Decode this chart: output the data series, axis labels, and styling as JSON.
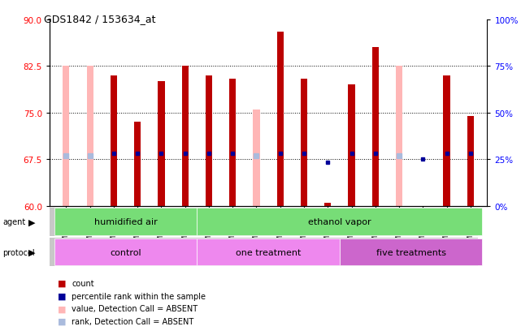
{
  "title": "GDS1842 / 153634_at",
  "samples": [
    "GSM101531",
    "GSM101532",
    "GSM101533",
    "GSM101534",
    "GSM101535",
    "GSM101536",
    "GSM101537",
    "GSM101538",
    "GSM101539",
    "GSM101540",
    "GSM101541",
    "GSM101542",
    "GSM101543",
    "GSM101544",
    "GSM101545",
    "GSM101546",
    "GSM101547",
    "GSM101548"
  ],
  "count_values": [
    null,
    null,
    81.0,
    73.5,
    80.0,
    82.5,
    81.0,
    80.5,
    null,
    88.0,
    80.5,
    60.5,
    79.5,
    85.5,
    null,
    null,
    81.0,
    74.5
  ],
  "value_absent": [
    82.5,
    82.5,
    null,
    null,
    null,
    null,
    null,
    null,
    75.5,
    null,
    null,
    null,
    null,
    null,
    82.5,
    null,
    null,
    null
  ],
  "rank_values": [
    68.5,
    68.5,
    68.5,
    68.5,
    68.5,
    68.5,
    68.5,
    68.5,
    68.5,
    68.5,
    68.5,
    67.0,
    68.5,
    68.5,
    68.0,
    67.5,
    68.5,
    68.5
  ],
  "rank_absent": [
    68.0,
    68.0,
    null,
    null,
    null,
    null,
    null,
    null,
    68.0,
    null,
    null,
    null,
    null,
    null,
    68.0,
    null,
    null,
    null
  ],
  "ylim_left": [
    60,
    90
  ],
  "ylim_right": [
    0,
    100
  ],
  "yticks_left": [
    60,
    67.5,
    75,
    82.5,
    90
  ],
  "yticks_right": [
    0,
    25,
    50,
    75,
    100
  ],
  "gridlines": [
    67.5,
    75,
    82.5
  ],
  "bar_color": "#BB0000",
  "absent_value_color": "#FFB6B6",
  "absent_rank_color": "#AABBDD",
  "rank_dot_color": "#000099",
  "bg_color": "#D8D8D8",
  "plot_bg": "#FFFFFF",
  "agent_color": "#77DD77",
  "protocol_color1": "#EE88EE",
  "protocol_color2": "#CC66CC",
  "label_row_bg": "#C8C8C8"
}
